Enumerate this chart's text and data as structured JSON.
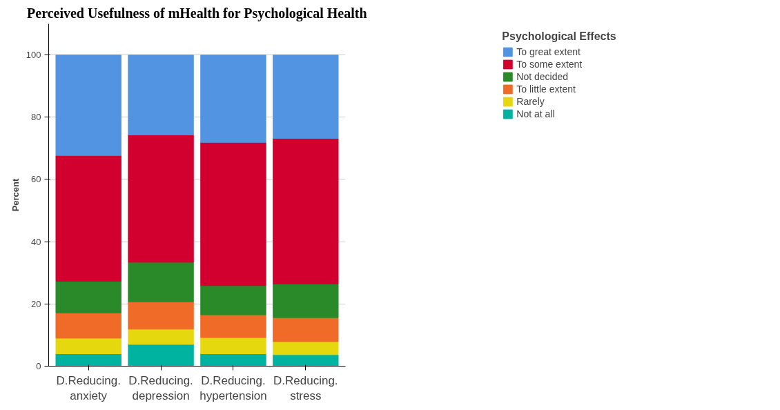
{
  "chart_data": {
    "type": "bar",
    "title": "Perceived Usefulness of mHealth for Psychological Health",
    "ylabel": "Percent",
    "legend_title": "Psychological Effects",
    "categories": [
      "D.Reducing. anxiety",
      "D.Reducing. depression",
      "D.Reducing. hypertension",
      "D.Reducing. stress"
    ],
    "stacked": true,
    "ylim": [
      0,
      110
    ],
    "yticks": [
      0,
      20,
      40,
      60,
      80,
      100
    ],
    "grid": "y",
    "legend": "top right",
    "series": [
      {
        "name": "Not at all",
        "color": "#00b3a0",
        "values": [
          4.0,
          7.0,
          4.0,
          3.7
        ]
      },
      {
        "name": "Rarely",
        "color": "#e5d80f",
        "values": [
          5.0,
          4.9,
          5.2,
          4.2
        ]
      },
      {
        "name": "To little extent",
        "color": "#f06a28",
        "values": [
          8.1,
          8.8,
          7.3,
          7.7
        ]
      },
      {
        "name": "Not decided",
        "color": "#2a8a2a",
        "values": [
          10.2,
          12.7,
          9.4,
          10.8
        ]
      },
      {
        "name": "To some extent",
        "color": "#d2002f",
        "values": [
          40.4,
          40.9,
          46.0,
          46.8
        ]
      },
      {
        "name": "To great extent",
        "color": "#5294e2",
        "values": [
          32.3,
          25.7,
          28.1,
          26.8
        ]
      }
    ]
  }
}
